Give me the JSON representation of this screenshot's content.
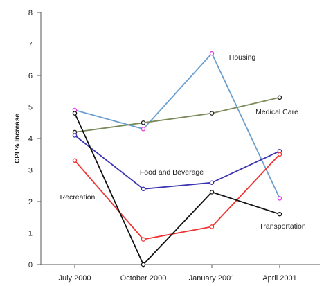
{
  "chart_data": {
    "type": "line",
    "title": "",
    "xlabel": "",
    "ylabel": "CPI % Increase",
    "ylim": [
      0,
      8
    ],
    "yticks": [
      0,
      1,
      2,
      3,
      4,
      5,
      6,
      7,
      8
    ],
    "grid": false,
    "legend": "none (series labeled inline)",
    "categories": [
      "July 2000",
      "October 2000",
      "January 2001",
      "April 2001"
    ],
    "series": [
      {
        "name": "Housing",
        "color": "#6a9fcf",
        "marker_color": "#e83ce8",
        "values": [
          4.9,
          4.3,
          6.7,
          2.1
        ]
      },
      {
        "name": "Medical Care",
        "color": "#7a8a5a",
        "marker_color": "#222222",
        "values": [
          4.2,
          4.5,
          4.8,
          5.3
        ]
      },
      {
        "name": "Food and Beverage",
        "color": "#3a32b0",
        "marker_color": "#3a32b0",
        "values": [
          4.1,
          2.4,
          2.6,
          3.6
        ]
      },
      {
        "name": "Recreation",
        "color": "#ee3333",
        "marker_color": "#ee3333",
        "values": [
          3.3,
          0.8,
          1.2,
          3.5
        ]
      },
      {
        "name": "Transportation",
        "color": "#111111",
        "marker_color": "#111111",
        "values": [
          4.8,
          0.0,
          2.3,
          1.6
        ]
      }
    ]
  }
}
